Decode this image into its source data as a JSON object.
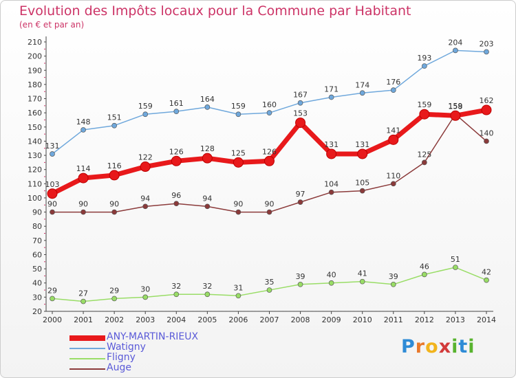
{
  "title": "Evolution des Impôts locaux pour la Commune par Habitant",
  "subtitle": "(en € et par an)",
  "logo": {
    "letters": [
      "P",
      "r",
      "o",
      "x",
      "i",
      "t",
      "i"
    ],
    "colors": [
      "#2e8bd6",
      "#e8792b",
      "#f2b41c",
      "#d23a3a",
      "#58b32e",
      "#2e8bd6",
      "#58b32e"
    ]
  },
  "chart_data": {
    "type": "line",
    "categories": [
      "2000",
      "2001",
      "2002",
      "2003",
      "2004",
      "2005",
      "2006",
      "2007",
      "2008",
      "2009",
      "2010",
      "2011",
      "2012",
      "2013",
      "2014"
    ],
    "ylim": [
      20,
      210
    ],
    "yticks": [
      20,
      30,
      40,
      50,
      60,
      70,
      80,
      90,
      100,
      110,
      120,
      130,
      140,
      150,
      160,
      170,
      180,
      190,
      200,
      210
    ],
    "grid": false,
    "legend_position": "bottom-left",
    "series": [
      {
        "name": "ANY-MARTIN-RIEUX",
        "color": "#e8191b",
        "values": [
          103,
          114,
          116,
          122,
          126,
          128,
          125,
          126,
          153,
          131,
          131,
          141,
          159,
          158,
          162
        ],
        "labels": [
          "103",
          "114",
          "116",
          "122",
          "126",
          "128",
          "125",
          "126",
          "153",
          "131",
          "131",
          "141",
          "159",
          "158",
          "162"
        ]
      },
      {
        "name": "Watigny",
        "color": "#6fa8dc",
        "values": [
          131,
          148,
          151,
          159,
          161,
          164,
          159,
          160,
          167,
          171,
          174,
          176,
          193,
          204,
          203
        ],
        "labels": [
          "131",
          "148",
          "151",
          "159",
          "161",
          "164",
          "159",
          "160",
          "167",
          "171",
          "174",
          "176",
          "193",
          "204",
          "203"
        ]
      },
      {
        "name": "Fligny",
        "color": "#99dd66",
        "values": [
          29,
          27,
          29,
          30,
          32,
          32,
          31,
          35,
          39,
          40,
          41,
          39,
          46,
          51,
          42
        ],
        "labels": [
          "29",
          "27",
          "29",
          "30",
          "32",
          "32",
          "31",
          "35",
          "39",
          "40",
          "41",
          "39",
          "46",
          "51",
          "42"
        ]
      },
      {
        "name": "Auge",
        "color": "#8b3a3a",
        "values": [
          90,
          90,
          90,
          94,
          96,
          94,
          90,
          90,
          97,
          104,
          105,
          110,
          125,
          159,
          140
        ],
        "labels": [
          "90",
          "90",
          "90",
          "94",
          "96",
          "94",
          "90",
          "90",
          "97",
          "104",
          "105",
          "110",
          "125",
          "159",
          "140"
        ]
      }
    ]
  }
}
